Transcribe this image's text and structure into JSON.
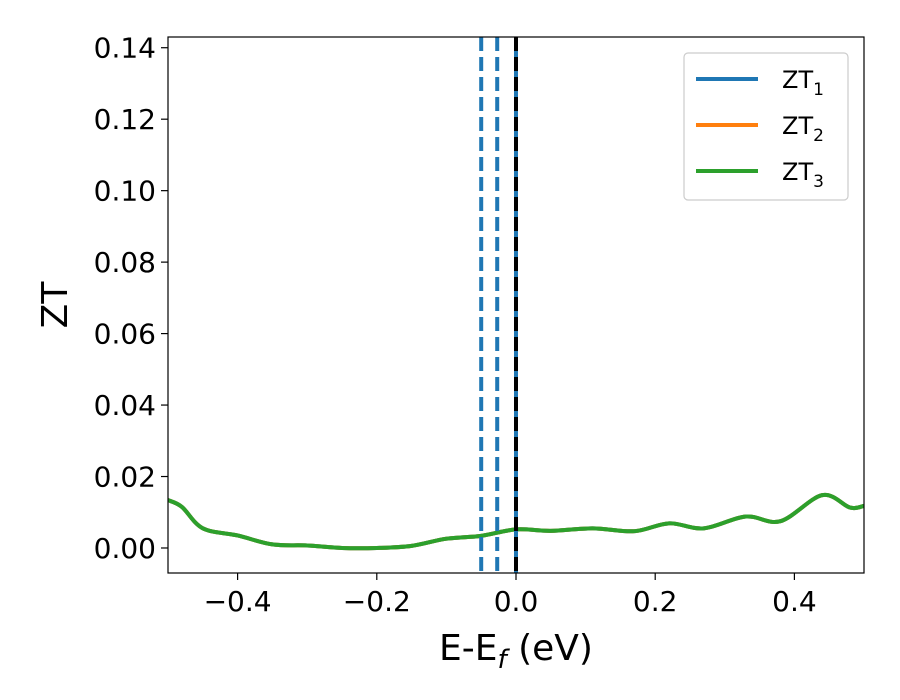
{
  "chart_data": {
    "type": "line",
    "xlabel": "E-E_f (eV)",
    "ylabel": "ZT",
    "xlim": [
      -0.5,
      0.5
    ],
    "ylim": [
      -0.007,
      0.143
    ],
    "grid": false,
    "legend_position": "top-right",
    "x_ticks": [
      "−0.4",
      "−0.2",
      "0.0",
      "0.2",
      "0.4"
    ],
    "x_tick_values": [
      -0.4,
      -0.2,
      0.0,
      0.2,
      0.4
    ],
    "y_ticks": [
      "0.00",
      "0.02",
      "0.04",
      "0.06",
      "0.08",
      "0.10",
      "0.12",
      "0.14"
    ],
    "y_tick_values": [
      0.0,
      0.02,
      0.04,
      0.06,
      0.08,
      0.1,
      0.12,
      0.14
    ],
    "series": [
      {
        "name": "ZT1",
        "label_base": "ZT",
        "label_sub": "1",
        "color": "#1f77b4",
        "x": [
          -0.5,
          -0.48,
          -0.45,
          -0.4,
          -0.35,
          -0.3,
          -0.25,
          -0.2,
          -0.15,
          -0.1,
          -0.05,
          0.0,
          0.05,
          0.11,
          0.17,
          0.22,
          0.27,
          0.33,
          0.38,
          0.44,
          0.48,
          0.5
        ],
        "y": [
          0.0134,
          0.0115,
          0.0055,
          0.0035,
          0.001,
          0.0007,
          0.0,
          0.0,
          0.0006,
          0.0026,
          0.0034,
          0.0052,
          0.0048,
          0.0055,
          0.0047,
          0.0069,
          0.0055,
          0.0088,
          0.0075,
          0.0148,
          0.0113,
          0.0118
        ]
      },
      {
        "name": "ZT2",
        "label_base": "ZT",
        "label_sub": "2",
        "color": "#ff7f0e",
        "x": [
          -0.5,
          -0.48,
          -0.45,
          -0.4,
          -0.35,
          -0.3,
          -0.25,
          -0.2,
          -0.15,
          -0.1,
          -0.05,
          0.0,
          0.05,
          0.11,
          0.17,
          0.22,
          0.27,
          0.33,
          0.38,
          0.44,
          0.48,
          0.5
        ],
        "y": [
          0.0134,
          0.0115,
          0.0055,
          0.0035,
          0.001,
          0.0007,
          0.0,
          0.0,
          0.0006,
          0.0026,
          0.0034,
          0.0052,
          0.0048,
          0.0055,
          0.0047,
          0.0069,
          0.0055,
          0.0088,
          0.0075,
          0.0148,
          0.0113,
          0.0118
        ]
      },
      {
        "name": "ZT3",
        "label_base": "ZT",
        "label_sub": "3",
        "color": "#2ca02c",
        "x": [
          -0.5,
          -0.48,
          -0.45,
          -0.4,
          -0.35,
          -0.3,
          -0.25,
          -0.2,
          -0.15,
          -0.1,
          -0.05,
          0.0,
          0.05,
          0.11,
          0.17,
          0.22,
          0.27,
          0.33,
          0.38,
          0.44,
          0.48,
          0.5
        ],
        "y": [
          0.0134,
          0.0115,
          0.0055,
          0.0035,
          0.001,
          0.0007,
          0.0,
          0.0,
          0.0006,
          0.0026,
          0.0034,
          0.0052,
          0.0048,
          0.0055,
          0.0047,
          0.0069,
          0.0055,
          0.0088,
          0.0075,
          0.0148,
          0.0113,
          0.0118
        ]
      }
    ],
    "vlines": [
      {
        "x": -0.05,
        "style": "dashed",
        "color": "#1f77b4"
      },
      {
        "x": -0.027,
        "style": "dashed",
        "color": "#1f77b4"
      },
      {
        "x": 0.0,
        "style": "solid",
        "color": "#1f77b4"
      },
      {
        "x": 0.0,
        "style": "dashed",
        "color": "#000000"
      }
    ]
  }
}
